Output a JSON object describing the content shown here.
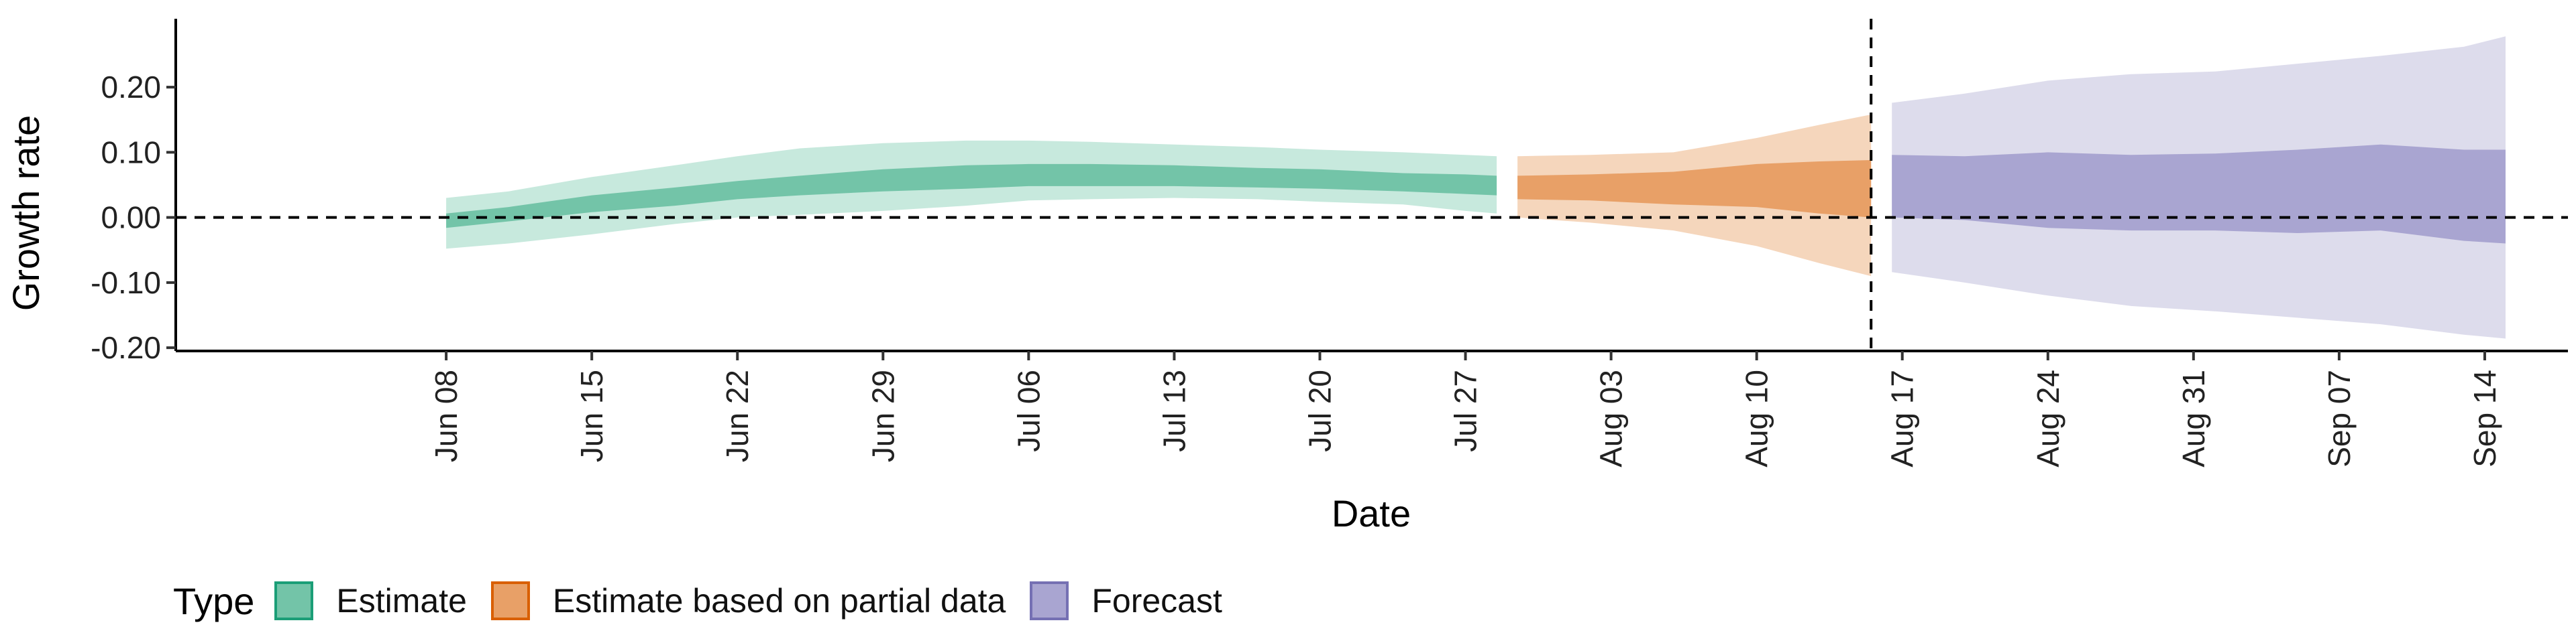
{
  "chart_data": {
    "type": "area",
    "title": "",
    "xlabel": "Date",
    "ylabel": "Growth rate",
    "ylim": [
      -0.205,
      0.305
    ],
    "y_ticks": [
      -0.2,
      -0.1,
      0.0,
      0.1,
      0.2
    ],
    "y_tick_labels": [
      "-0.20",
      "-0.10",
      "0.00",
      "0.10",
      "0.20"
    ],
    "x_range_days": [
      -6,
      109
    ],
    "x_ticks": [
      {
        "label": "Jun 08",
        "day": 7
      },
      {
        "label": "Jun 15",
        "day": 14
      },
      {
        "label": "Jun 22",
        "day": 21
      },
      {
        "label": "Jun 29",
        "day": 28
      },
      {
        "label": "Jul 06",
        "day": 35
      },
      {
        "label": "Jul 13",
        "day": 42
      },
      {
        "label": "Jul 20",
        "day": 49
      },
      {
        "label": "Jul 27",
        "day": 56
      },
      {
        "label": "Aug 03",
        "day": 63
      },
      {
        "label": "Aug 10",
        "day": 70
      },
      {
        "label": "Aug 17",
        "day": 77
      },
      {
        "label": "Aug 24",
        "day": 84
      },
      {
        "label": "Aug 31",
        "day": 91
      },
      {
        "label": "Sep 07",
        "day": 98
      },
      {
        "label": "Sep 14",
        "day": 105
      }
    ],
    "x_day_origin": "Jun 01",
    "reference_lines": {
      "horizontal_y": 0.0,
      "vertical_day": 75.5,
      "style": "dashed"
    },
    "legend": {
      "title": "Type",
      "position": "bottom-left"
    },
    "series": [
      {
        "name": "Estimate",
        "color": "#1b9e77",
        "fill": "#73c4a8",
        "fill_light": "#c7e9dd",
        "points": [
          {
            "day": 7,
            "inner": [
              -0.016,
              0.006
            ],
            "outer": [
              -0.048,
              0.03
            ]
          },
          {
            "day": 10,
            "inner": [
              -0.006,
              0.016
            ],
            "outer": [
              -0.04,
              0.04
            ]
          },
          {
            "day": 14,
            "inner": [
              0.008,
              0.034
            ],
            "outer": [
              -0.026,
              0.062
            ]
          },
          {
            "day": 18,
            "inner": [
              0.018,
              0.046
            ],
            "outer": [
              -0.01,
              0.08
            ]
          },
          {
            "day": 21,
            "inner": [
              0.028,
              0.056
            ],
            "outer": [
              0.0,
              0.094
            ]
          },
          {
            "day": 24,
            "inner": [
              0.034,
              0.064
            ],
            "outer": [
              0.004,
              0.106
            ]
          },
          {
            "day": 28,
            "inner": [
              0.04,
              0.074
            ],
            "outer": [
              0.01,
              0.114
            ]
          },
          {
            "day": 32,
            "inner": [
              0.044,
              0.08
            ],
            "outer": [
              0.018,
              0.118
            ]
          },
          {
            "day": 35,
            "inner": [
              0.048,
              0.082
            ],
            "outer": [
              0.026,
              0.118
            ]
          },
          {
            "day": 38,
            "inner": [
              0.048,
              0.082
            ],
            "outer": [
              0.028,
              0.116
            ]
          },
          {
            "day": 42,
            "inner": [
              0.048,
              0.08
            ],
            "outer": [
              0.03,
              0.112
            ]
          },
          {
            "day": 46,
            "inner": [
              0.046,
              0.076
            ],
            "outer": [
              0.028,
              0.108
            ]
          },
          {
            "day": 49,
            "inner": [
              0.044,
              0.074
            ],
            "outer": [
              0.024,
              0.104
            ]
          },
          {
            "day": 53,
            "inner": [
              0.04,
              0.068
            ],
            "outer": [
              0.02,
              0.1
            ]
          },
          {
            "day": 56,
            "inner": [
              0.036,
              0.066
            ],
            "outer": [
              0.01,
              0.096
            ]
          },
          {
            "day": 57.5,
            "inner": [
              0.034,
              0.064
            ],
            "outer": [
              0.006,
              0.094
            ]
          }
        ]
      },
      {
        "name": "Estimate based on partial data",
        "color": "#d95f02",
        "fill": "#e8a067",
        "fill_light": "#f5d6bc",
        "points": [
          {
            "day": 58.5,
            "inner": [
              0.028,
              0.064
            ],
            "outer": [
              0.0,
              0.094
            ]
          },
          {
            "day": 62,
            "inner": [
              0.026,
              0.066
            ],
            "outer": [
              -0.008,
              0.096
            ]
          },
          {
            "day": 66,
            "inner": [
              0.02,
              0.07
            ],
            "outer": [
              -0.02,
              0.1
            ]
          },
          {
            "day": 70,
            "inner": [
              0.016,
              0.082
            ],
            "outer": [
              -0.044,
              0.122
            ]
          },
          {
            "day": 73,
            "inner": [
              0.006,
              0.086
            ],
            "outer": [
              -0.07,
              0.142
            ]
          },
          {
            "day": 75.5,
            "inner": [
              0.0,
              0.088
            ],
            "outer": [
              -0.09,
              0.158
            ]
          }
        ]
      },
      {
        "name": "Forecast",
        "color": "#7570b3",
        "fill": "#a9a5d1",
        "fill_light": "#dddcec",
        "points": [
          {
            "day": 76.5,
            "inner": [
              0.0,
              0.096
            ],
            "outer": [
              -0.084,
              0.176
            ]
          },
          {
            "day": 80,
            "inner": [
              -0.004,
              0.094
            ],
            "outer": [
              -0.1,
              0.19
            ]
          },
          {
            "day": 84,
            "inner": [
              -0.016,
              0.1
            ],
            "outer": [
              -0.12,
              0.21
            ]
          },
          {
            "day": 88,
            "inner": [
              -0.02,
              0.096
            ],
            "outer": [
              -0.136,
              0.22
            ]
          },
          {
            "day": 92,
            "inner": [
              -0.02,
              0.098
            ],
            "outer": [
              -0.144,
              0.224
            ]
          },
          {
            "day": 96,
            "inner": [
              -0.024,
              0.104
            ],
            "outer": [
              -0.154,
              0.236
            ]
          },
          {
            "day": 100,
            "inner": [
              -0.02,
              0.112
            ],
            "outer": [
              -0.164,
              0.248
            ]
          },
          {
            "day": 104,
            "inner": [
              -0.036,
              0.104
            ],
            "outer": [
              -0.18,
              0.262
            ]
          },
          {
            "day": 106,
            "inner": [
              -0.04,
              0.104
            ],
            "outer": [
              -0.186,
              0.278
            ]
          }
        ]
      }
    ]
  }
}
